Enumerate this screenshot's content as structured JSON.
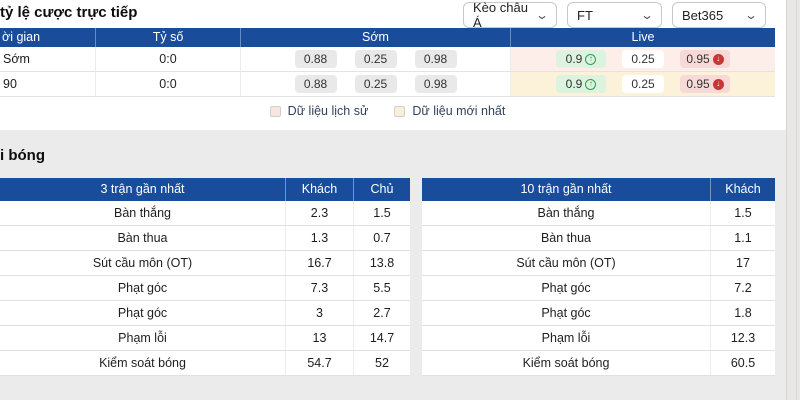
{
  "colors": {
    "page_bg": "#ffffff",
    "navy": "#1a4c9c",
    "section_bg": "#ebebeb",
    "border": "#e3e3e3",
    "pill_bg": "#e9e9e9",
    "live_history_bg": "#fdeeea",
    "live_latest_bg": "#fcf2da",
    "up_pill_bg": "#dcf3e0",
    "down_pill_bg": "#f7d9d7",
    "up_green": "#2e9e4f",
    "down_red": "#c83737",
    "legend_history": "#f8e6e2",
    "legend_latest": "#f8efd8",
    "scroll_strip": "#e9e7e5"
  },
  "icons": {
    "chevron_down": "⌄",
    "trend_up": "↑",
    "trend_down": "↓"
  },
  "header": {
    "title": "tỷ lệ cược trực tiếp"
  },
  "filters": {
    "market": "Kèo châu Á",
    "period": "FT",
    "bookmaker": "Bet365"
  },
  "odds_table": {
    "headers": {
      "time": "ời gian",
      "score": "Tỷ số",
      "early": "Sớm",
      "live": "Live"
    },
    "rows": [
      {
        "time": "Sớm",
        "score": "0:0",
        "early": [
          "0.88",
          "0.25",
          "0.98"
        ],
        "live": [
          "0.9",
          "0.25",
          "0.95"
        ]
      },
      {
        "time": "90",
        "score": "0:0",
        "early": [
          "0.88",
          "0.25",
          "0.98"
        ],
        "live": [
          "0.9",
          "0.25",
          "0.95"
        ]
      }
    ]
  },
  "legend": {
    "history": "Dữ liệu lịch sử",
    "latest": "Dữ liệu mới nhất"
  },
  "stats": {
    "title": "i bóng",
    "left": {
      "headers": [
        "3 trận gần nhất",
        "Khách",
        "Chủ"
      ],
      "rows": [
        [
          "Bàn thắng",
          "2.3",
          "1.5"
        ],
        [
          "Bàn thua",
          "1.3",
          "0.7"
        ],
        [
          "Sút cầu môn (OT)",
          "16.7",
          "13.8"
        ],
        [
          "Phạt góc",
          "7.3",
          "5.5"
        ],
        [
          "Phạt góc",
          "3",
          "2.7"
        ],
        [
          "Phạm lỗi",
          "13",
          "14.7"
        ],
        [
          "Kiểm soát bóng",
          "54.7",
          "52"
        ]
      ]
    },
    "right": {
      "headers": [
        "10 trận gần nhất",
        "Khách"
      ],
      "rows": [
        [
          "Bàn thắng",
          "1.5"
        ],
        [
          "Bàn thua",
          "1.1"
        ],
        [
          "Sút cầu môn (OT)",
          "17"
        ],
        [
          "Phạt góc",
          "7.2"
        ],
        [
          "Phạt góc",
          "1.8"
        ],
        [
          "Phạm lỗi",
          "12.3"
        ],
        [
          "Kiểm soát bóng",
          "60.5"
        ]
      ]
    }
  }
}
